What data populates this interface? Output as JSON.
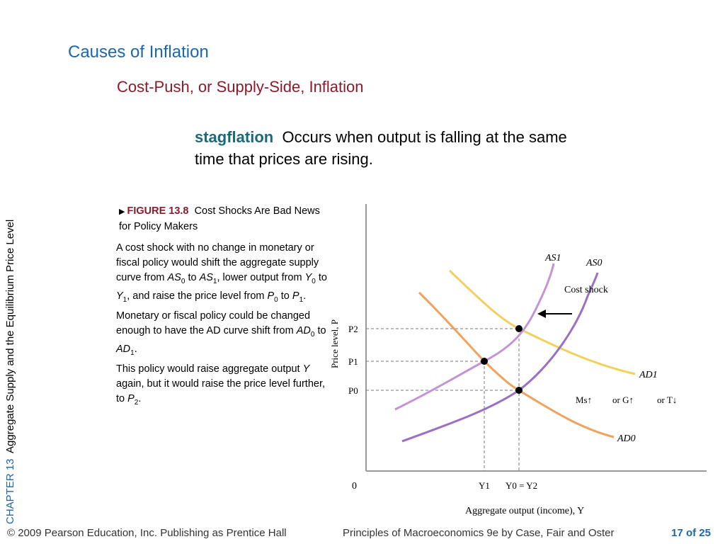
{
  "slide": {
    "title": "Causes of Inflation",
    "subtitle": "Cost-Push, or Supply-Side, Inflation",
    "definition": {
      "term": "stagflation",
      "text": "Occurs when output is falling at the same time that prices are rising."
    },
    "sidebar": {
      "chapter": "CHAPTER 13",
      "chapter_title": "Aggregate Supply and the Equilibrium Price Level"
    },
    "figure_caption": {
      "label": "FIGURE 13.8",
      "title": "Cost Shocks Are Bad News for Policy Makers"
    },
    "footer": {
      "copyright": "© 2009 Pearson Education, Inc. Publishing as Prentice Hall",
      "book": "Principles of Macroeconomics 9e by Case, Fair and Oster",
      "page": "17 of 25"
    }
  },
  "diagram": {
    "y_axis_label": "Price level, P",
    "x_axis_label": "Aggregate output (income), Y",
    "origin_label": "0",
    "y_ticks": [
      "P2",
      "P1",
      "P0"
    ],
    "x_ticks": [
      "Y1",
      "Y0 = Y2"
    ],
    "curves": [
      "AS1",
      "AS0",
      "AD1",
      "AD0"
    ],
    "annotation": "Cost shock",
    "policy_text": [
      "Ms↑",
      "or G↑",
      "or T↓"
    ],
    "colors": {
      "as_curves": "#9b6fc2",
      "as1_light": "#c493d6",
      "ad0": "#f0a35e",
      "ad1": "#f1d15c",
      "dashed": "#777777",
      "axis": "#999999"
    }
  }
}
